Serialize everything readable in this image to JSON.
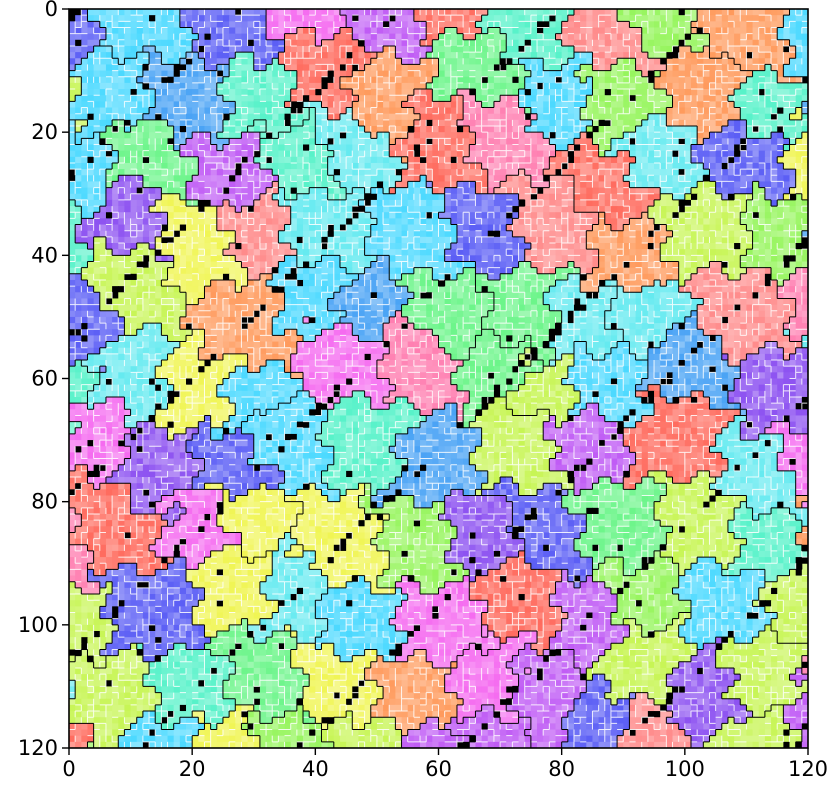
{
  "chart_data": {
    "type": "heatmap",
    "title": "",
    "xlabel": "",
    "ylabel": "",
    "xlim": [
      0,
      120
    ],
    "ylim": [
      120,
      0
    ],
    "y_axis_inverted": true,
    "grid": false,
    "legend": "none",
    "x_ticks": [
      0,
      20,
      40,
      60,
      80,
      100,
      120
    ],
    "y_ticks": [
      0,
      20,
      40,
      60,
      80,
      100,
      120
    ],
    "x_tick_labels": [
      "0",
      "20",
      "40",
      "60",
      "80",
      "100",
      "120"
    ],
    "y_tick_labels": [
      "0",
      "20",
      "40",
      "60",
      "80",
      "100",
      "120"
    ],
    "grid_size": [
      120,
      120
    ],
    "seed": 7,
    "palette": [
      "#ff6b5e",
      "#ff7fb1",
      "#f56bf0",
      "#c05cf5",
      "#8d52f1",
      "#5b5ef5",
      "#4aa3f5",
      "#65eaf0",
      "#57f2c9",
      "#6cf58a",
      "#96f55d",
      "#c7f554",
      "#f0f554",
      "#ff9a5c",
      "#ff8a8a",
      "#4bd9ff"
    ],
    "grain_boundary_color": "#000000",
    "subgrain_line_color": "#ffffff",
    "defect_color": "#000000",
    "band_direction": "lower-left to upper-right diagonals"
  }
}
